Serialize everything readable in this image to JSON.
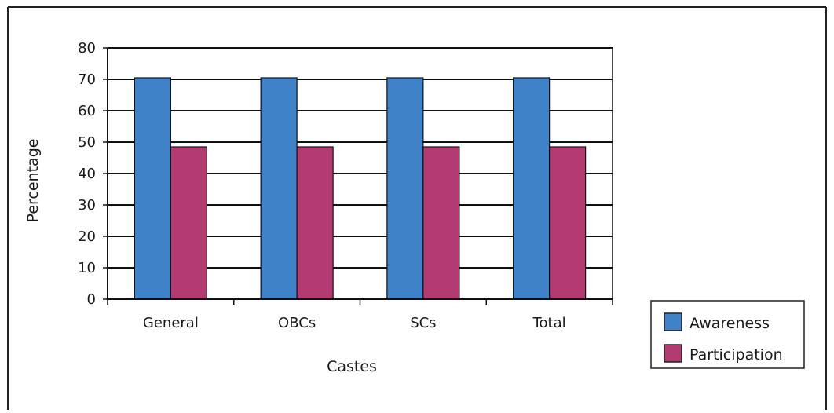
{
  "chart_data": {
    "type": "bar",
    "title": "",
    "xlabel": "Castes",
    "ylabel": "Percentage",
    "categories": [
      "General",
      "OBCs",
      "SCs",
      "Total"
    ],
    "series": [
      {
        "name": "Awareness",
        "values": [
          70.5,
          70.5,
          70.5,
          70.5
        ],
        "color": "#3f82c8"
      },
      {
        "name": "Participation",
        "values": [
          48.5,
          48.5,
          48.5,
          48.5
        ],
        "color": "#b43b72"
      }
    ],
    "ylim": [
      0,
      80
    ],
    "yticks": [
      "0",
      "10",
      "20",
      "30",
      "40",
      "50",
      "60",
      "70",
      "80"
    ],
    "grid": true,
    "legend_position": "bottom-right"
  }
}
